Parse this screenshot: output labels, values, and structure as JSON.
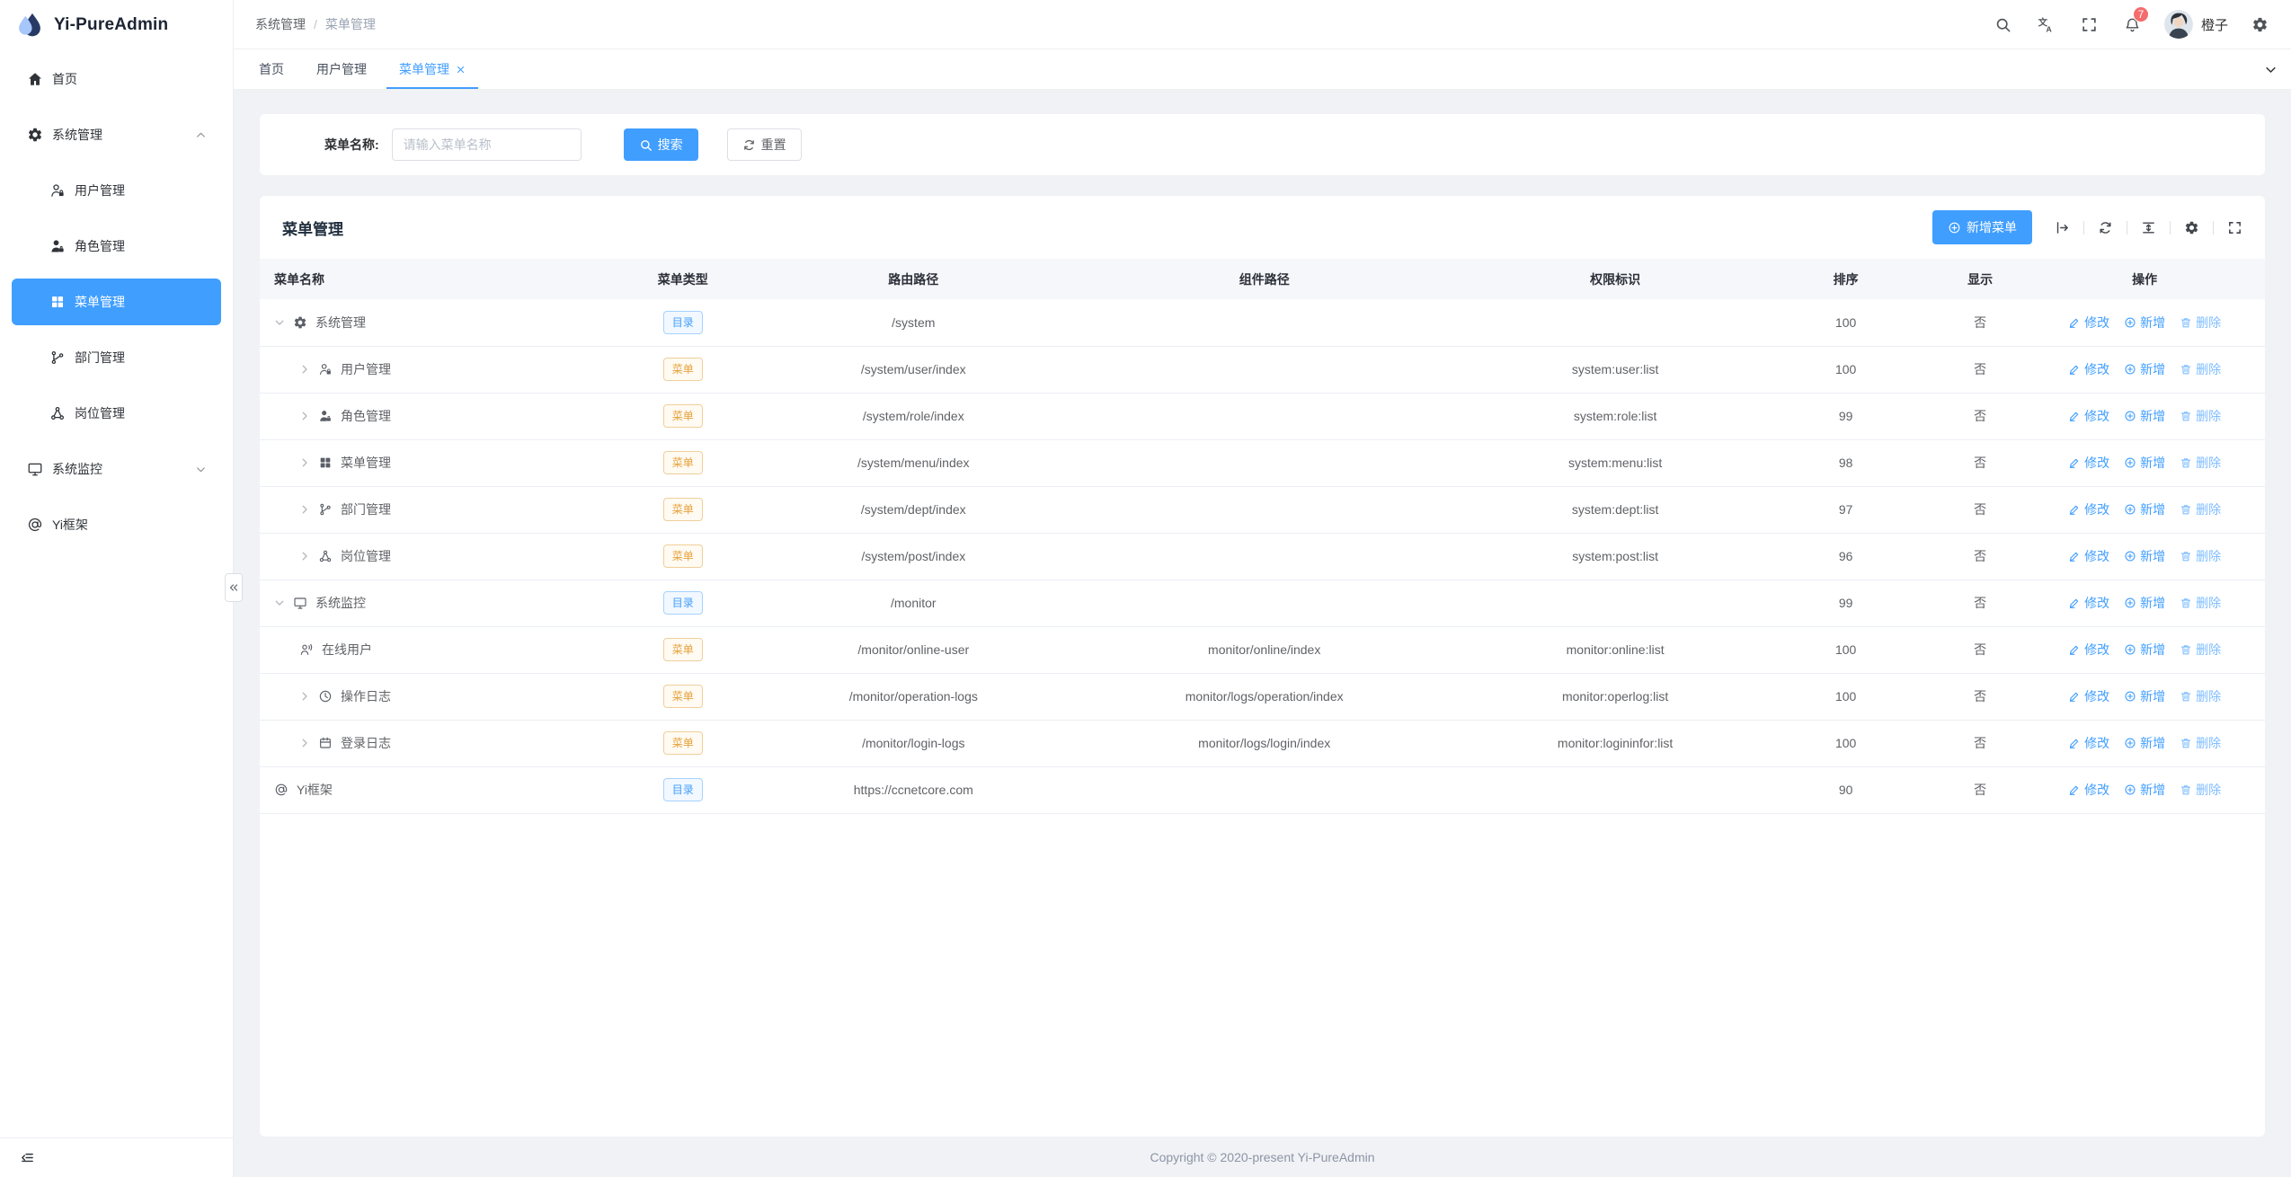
{
  "app": {
    "name": "Yi-PureAdmin",
    "footer": "Copyright © 2020-present Yi-PureAdmin"
  },
  "sidebar": {
    "items": [
      {
        "id": "home",
        "icon": "home-icon",
        "label": "首页",
        "level": 1
      },
      {
        "id": "system",
        "icon": "gear-icon",
        "label": "系统管理",
        "level": 1,
        "chevron": "up"
      },
      {
        "id": "user",
        "icon": "user-icon",
        "label": "用户管理",
        "level": 2
      },
      {
        "id": "role",
        "icon": "role-icon",
        "label": "角色管理",
        "level": 2
      },
      {
        "id": "menu",
        "icon": "grid-icon",
        "label": "菜单管理",
        "level": 2,
        "active": true
      },
      {
        "id": "dept",
        "icon": "dept-icon",
        "label": "部门管理",
        "level": 2
      },
      {
        "id": "post",
        "icon": "post-icon",
        "label": "岗位管理",
        "level": 2
      },
      {
        "id": "monitor",
        "icon": "monitor-icon",
        "label": "系统监控",
        "level": 1,
        "chevron": "down"
      },
      {
        "id": "yi",
        "icon": "at-icon",
        "label": "Yi框架",
        "level": 1
      }
    ]
  },
  "header": {
    "breadcrumb": [
      "系统管理",
      "菜单管理"
    ],
    "separator": "/",
    "badge_count": "7",
    "user_name": "橙子"
  },
  "tabs": [
    {
      "label": "首页"
    },
    {
      "label": "用户管理"
    },
    {
      "label": "菜单管理",
      "active": true,
      "closable": true
    }
  ],
  "search": {
    "label": "菜单名称:",
    "placeholder": "请输入菜单名称",
    "search_label": "搜索",
    "reset_label": "重置"
  },
  "panel": {
    "title": "菜单管理",
    "add_label": "新增菜单"
  },
  "table": {
    "columns": [
      {
        "label": "菜单名称"
      },
      {
        "label": "菜单类型"
      },
      {
        "label": "路由路径"
      },
      {
        "label": "组件路径"
      },
      {
        "label": "权限标识"
      },
      {
        "label": "排序"
      },
      {
        "label": "显示"
      },
      {
        "label": "操作"
      }
    ],
    "rows": [
      {
        "name": "系统管理",
        "icon": "gear-icon",
        "level": 1,
        "expand": "open",
        "type": "dir",
        "route": "/system",
        "component": "",
        "perm": "",
        "sort": "100",
        "visible": "否"
      },
      {
        "name": "用户管理",
        "icon": "user-icon",
        "level": 2,
        "expand": "closed",
        "type": "menu",
        "route": "/system/user/index",
        "component": "",
        "perm": "system:user:list",
        "sort": "100",
        "visible": "否"
      },
      {
        "name": "角色管理",
        "icon": "role-icon",
        "level": 2,
        "expand": "closed",
        "type": "menu",
        "route": "/system/role/index",
        "component": "",
        "perm": "system:role:list",
        "sort": "99",
        "visible": "否"
      },
      {
        "name": "菜单管理",
        "icon": "grid-icon",
        "level": 2,
        "expand": "closed",
        "type": "menu",
        "route": "/system/menu/index",
        "component": "",
        "perm": "system:menu:list",
        "sort": "98",
        "visible": "否"
      },
      {
        "name": "部门管理",
        "icon": "dept-icon",
        "level": 2,
        "expand": "closed",
        "type": "menu",
        "route": "/system/dept/index",
        "component": "",
        "perm": "system:dept:list",
        "sort": "97",
        "visible": "否"
      },
      {
        "name": "岗位管理",
        "icon": "post-icon",
        "level": 2,
        "expand": "closed",
        "type": "menu",
        "route": "/system/post/index",
        "component": "",
        "perm": "system:post:list",
        "sort": "96",
        "visible": "否"
      },
      {
        "name": "系统监控",
        "icon": "monitor-icon",
        "level": 1,
        "expand": "open",
        "type": "dir",
        "route": "/monitor",
        "component": "",
        "perm": "",
        "sort": "99",
        "visible": "否"
      },
      {
        "name": "在线用户",
        "icon": "online-user-icon",
        "level": 2,
        "expand": "none",
        "type": "menu",
        "route": "/monitor/online-user",
        "component": "monitor/online/index",
        "perm": "monitor:online:list",
        "sort": "100",
        "visible": "否"
      },
      {
        "name": "操作日志",
        "icon": "clock-icon",
        "level": 2,
        "expand": "closed",
        "type": "menu",
        "route": "/monitor/operation-logs",
        "component": "monitor/logs/operation/index",
        "perm": "monitor:operlog:list",
        "sort": "100",
        "visible": "否"
      },
      {
        "name": "登录日志",
        "icon": "calendar-icon",
        "level": 2,
        "expand": "closed",
        "type": "menu",
        "route": "/monitor/login-logs",
        "component": "monitor/logs/login/index",
        "perm": "monitor:logininfor:list",
        "sort": "100",
        "visible": "否"
      },
      {
        "name": "Yi框架",
        "icon": "at-icon",
        "level": 1,
        "expand": "none",
        "type": "dir",
        "route": "https://ccnetcore.com",
        "component": "",
        "perm": "",
        "sort": "90",
        "visible": "否"
      }
    ]
  },
  "tags": {
    "dir": "目录",
    "menu": "菜单"
  },
  "actions": {
    "edit": "修改",
    "add": "新增",
    "delete": "删除"
  },
  "colors": {
    "primary": "#409eff",
    "tag_dir": "#409eff",
    "tag_menu": "#e6a23c",
    "badge": "#f56c6c"
  }
}
